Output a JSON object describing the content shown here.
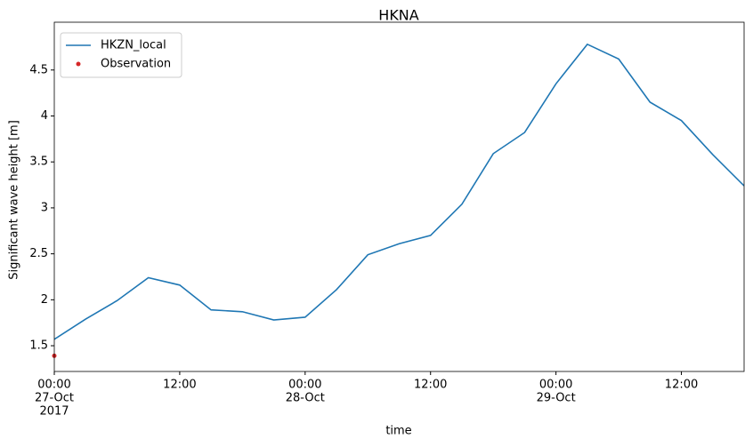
{
  "chart_data": {
    "type": "line",
    "title": "HKNA",
    "x_label": "time",
    "y_label": "Significant wave height [m]",
    "xlim": [
      "2017-10-27T00:00",
      "2017-10-29T18:00"
    ],
    "xticks": [
      {
        "value": "2017-10-27T00:00",
        "label": [
          "00:00",
          "27-Oct",
          "2017"
        ]
      },
      {
        "value": "2017-10-27T12:00",
        "label": [
          "12:00"
        ]
      },
      {
        "value": "2017-10-28T00:00",
        "label": [
          "00:00",
          "28-Oct"
        ]
      },
      {
        "value": "2017-10-28T12:00",
        "label": [
          "12:00"
        ]
      },
      {
        "value": "2017-10-29T00:00",
        "label": [
          "00:00",
          "29-Oct"
        ]
      },
      {
        "value": "2017-10-29T12:00",
        "label": [
          "12:00"
        ]
      }
    ],
    "ylim": [
      1.22,
      5.02
    ],
    "yticks": [
      1.5,
      2.0,
      2.5,
      3.0,
      3.5,
      4.0,
      4.5
    ],
    "grid": false,
    "legend": "upper-left",
    "series": [
      {
        "name": "HKZN_local",
        "kind": "line",
        "color": "#1f77b4",
        "x": [
          "2017-10-27T00:00",
          "2017-10-27T03:00",
          "2017-10-27T06:00",
          "2017-10-27T09:00",
          "2017-10-27T12:00",
          "2017-10-27T15:00",
          "2017-10-27T18:00",
          "2017-10-27T21:00",
          "2017-10-28T00:00",
          "2017-10-28T03:00",
          "2017-10-28T06:00",
          "2017-10-28T09:00",
          "2017-10-28T12:00",
          "2017-10-28T15:00",
          "2017-10-28T18:00",
          "2017-10-28T21:00",
          "2017-10-29T00:00",
          "2017-10-29T03:00",
          "2017-10-29T06:00",
          "2017-10-29T09:00",
          "2017-10-29T12:00",
          "2017-10-29T15:00",
          "2017-10-29T18:00"
        ],
        "values": [
          1.57,
          1.79,
          1.99,
          2.24,
          2.16,
          1.89,
          1.87,
          1.78,
          1.81,
          2.11,
          2.49,
          2.61,
          2.7,
          3.04,
          3.59,
          3.82,
          4.35,
          4.78,
          4.62,
          4.15,
          3.95,
          3.58,
          3.24
        ]
      },
      {
        "name": "Observation",
        "kind": "scatter",
        "color": "#d62728",
        "x": [
          "2017-10-27T00:00"
        ],
        "values": [
          1.39
        ]
      }
    ]
  }
}
